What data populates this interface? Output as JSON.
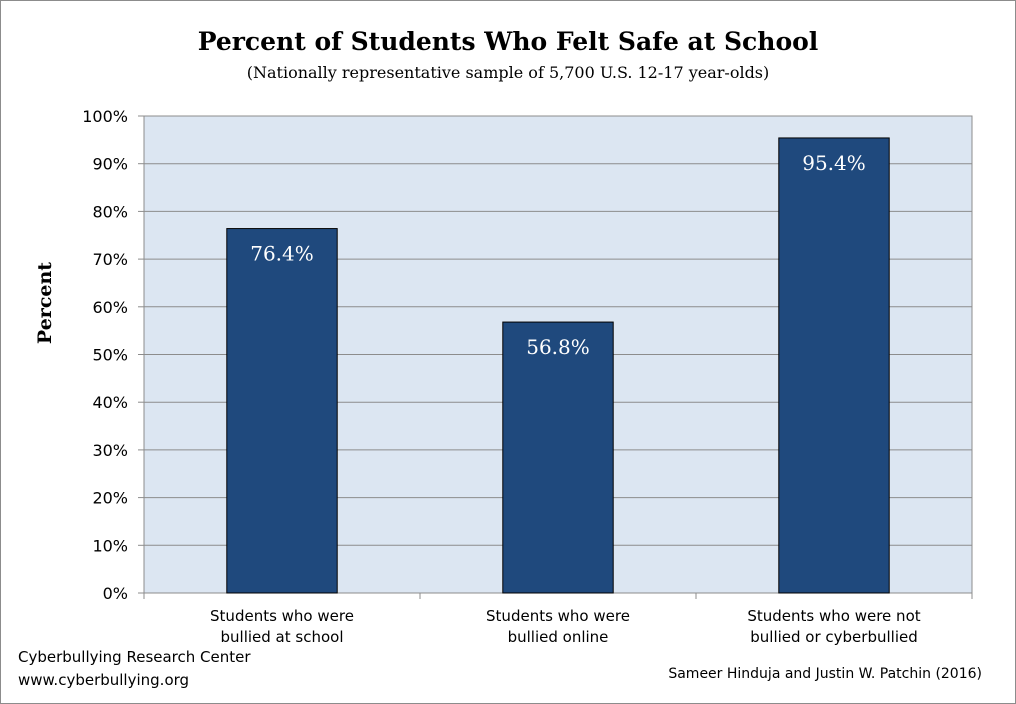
{
  "chart_data": {
    "type": "bar",
    "title": "Percent of Students Who Felt Safe at School",
    "subtitle": "(Nationally representative sample of 5,700 U.S. 12-17 year-olds)",
    "ylabel": "Percent",
    "xlabel": "",
    "ylim": [
      0,
      100
    ],
    "yticks": [
      0,
      10,
      20,
      30,
      40,
      50,
      60,
      70,
      80,
      90,
      100
    ],
    "ytick_labels": [
      "0%",
      "10%",
      "20%",
      "30%",
      "40%",
      "50%",
      "60%",
      "70%",
      "80%",
      "90%",
      "100%"
    ],
    "categories": [
      [
        "Students who were",
        "bullied at school"
      ],
      [
        "Students who were",
        "bullied online"
      ],
      [
        "Students who were not",
        "bullied or cyberbullied"
      ]
    ],
    "values": [
      76.4,
      56.8,
      95.4
    ],
    "data_labels": [
      "76.4%",
      "56.8%",
      "95.4%"
    ],
    "grid": true,
    "colors": {
      "bar": "#1f497d",
      "plot_background": "#dce6f2",
      "gridline": "#8c8c8c"
    }
  },
  "footer": {
    "org": "Cyberbullying Research Center",
    "url": "www.cyberbullying.org",
    "credit": "Sameer Hinduja and Justin W. Patchin (2016)"
  }
}
